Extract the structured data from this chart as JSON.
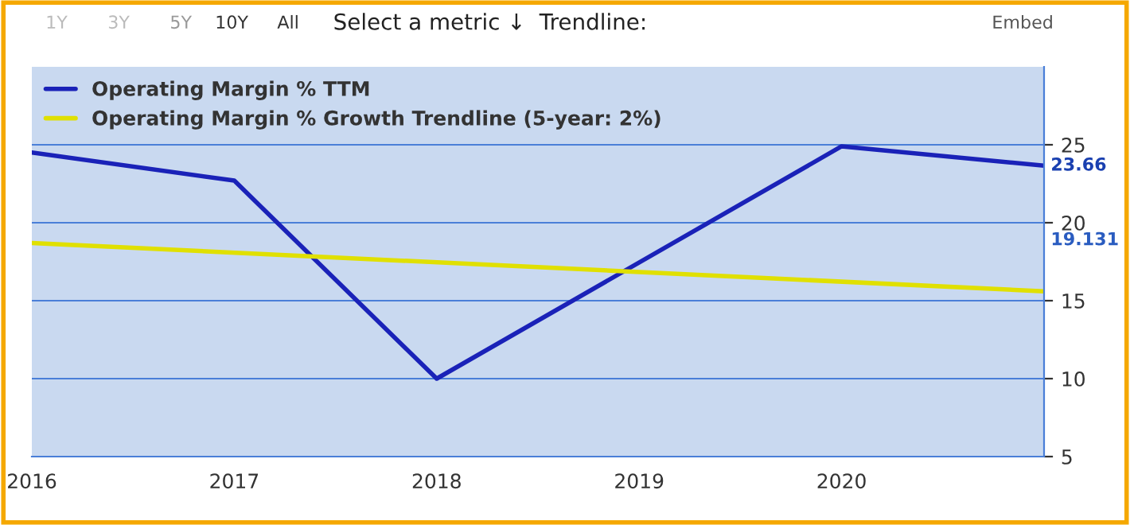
{
  "chart_data": {
    "type": "line",
    "x": [
      2016,
      2017,
      2018,
      2020,
      2021
    ],
    "series": [
      {
        "name": "Operating Margin % TTM",
        "color": "#1a22b8",
        "values": [
          24.5,
          22.7,
          10.0,
          24.9,
          23.66
        ]
      },
      {
        "name": "Operating Margin % Growth Trendline (5-year: 2%)",
        "color": "#e0e000",
        "type": "line",
        "x": [
          2016,
          2021
        ],
        "values": [
          18.7,
          15.6
        ]
      }
    ],
    "xlim": [
      2016,
      2021
    ],
    "xticks": [
      2016,
      2017,
      2018,
      2019,
      2020
    ],
    "ylim": [
      5,
      30
    ],
    "yticks": [
      5,
      10,
      15,
      20,
      25
    ],
    "grid": "y",
    "legend": "top left",
    "marker": "none",
    "line_style": "solid",
    "annotations": [
      {
        "text": "23.66",
        "x": 2021,
        "y": 23.66
      },
      "19.131",
      "1Y",
      "3Y",
      "5Y",
      "10Y",
      "All",
      "Select a metric ↓",
      "Trendline:",
      "Embed"
    ]
  }
}
